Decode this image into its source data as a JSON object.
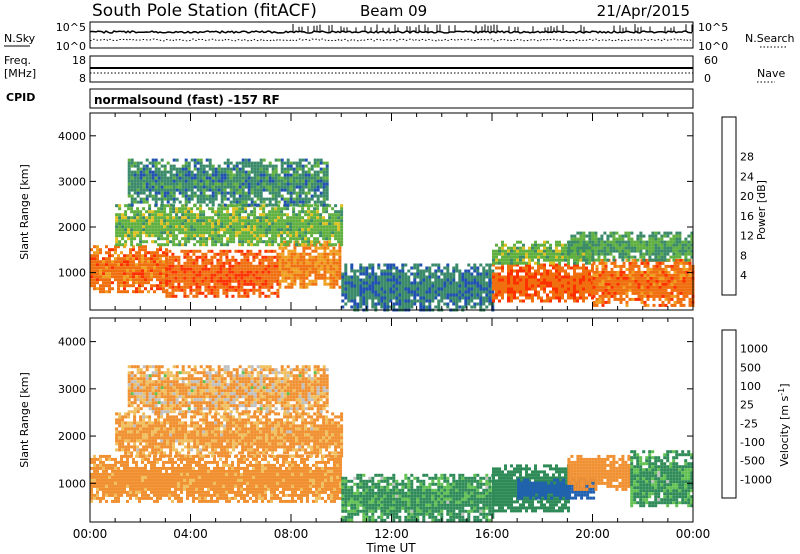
{
  "header": {
    "station_title": "South Pole Station (fitACF)",
    "beam": "Beam 09",
    "date": "21/Apr/2015"
  },
  "sky_panel": {
    "label_left": "N.Sky",
    "label_right": "N.Search",
    "left_ticks": [
      "10^5",
      "10^0"
    ],
    "right_ticks": [
      "10^5",
      "10^0"
    ]
  },
  "freq_panel": {
    "label_left_line1": "Freq.",
    "label_left_line2": "[MHz]",
    "label_right": "Nave",
    "left_ticks": [
      "18",
      "8"
    ],
    "right_ticks": [
      "60",
      "0"
    ]
  },
  "cpid": {
    "label": "CPID",
    "value": "normalsound (fast) -157 RF"
  },
  "x_axis": {
    "title": "Time UT",
    "ticks": [
      "00:00",
      "04:00",
      "08:00",
      "12:00",
      "16:00",
      "20:00",
      "00:00"
    ]
  },
  "colors": {
    "power_scale": [
      "#1030e0",
      "#2050b0",
      "#3a8a6a",
      "#60b040",
      "#e0c020",
      "#f0a020",
      "#f07010",
      "#ff3000",
      "#ff0000"
    ],
    "velocity_scale": [
      "#ff0000",
      "#ff5010",
      "#f09030",
      "#f0c060",
      "#c0c0c0",
      "#60c050",
      "#2e8b57",
      "#2060b0",
      "#1030e0"
    ]
  },
  "chart_data": [
    {
      "type": "heatmap",
      "name": "power",
      "ylabel": "Slant Range [km]",
      "xlabel": "",
      "x_range_hours": [
        0,
        24
      ],
      "ylim": [
        180,
        4500
      ],
      "yticks": [
        1000,
        2000,
        3000,
        4000
      ],
      "colorbar": {
        "label": "Power [dB]",
        "ticks": [
          4,
          8,
          12,
          16,
          20,
          24,
          28
        ],
        "range": [
          0,
          32
        ]
      },
      "regions": [
        {
          "t0": 0.0,
          "t1": 3.0,
          "r0": 600,
          "r1": 1600,
          "value": 26
        },
        {
          "t0": 3.0,
          "t1": 7.5,
          "r0": 500,
          "r1": 1500,
          "value": 27
        },
        {
          "t0": 7.5,
          "t1": 10.0,
          "r0": 700,
          "r1": 1700,
          "value": 24
        },
        {
          "t0": 1.0,
          "t1": 10.0,
          "r0": 1600,
          "r1": 2500,
          "value": 14
        },
        {
          "t0": 1.5,
          "t1": 9.5,
          "r0": 2500,
          "r1": 3500,
          "value": 10
        },
        {
          "t0": 10.0,
          "t1": 16.0,
          "r0": 200,
          "r1": 1200,
          "value": 9
        },
        {
          "t0": 16.0,
          "t1": 20.0,
          "r0": 400,
          "r1": 1200,
          "value": 27
        },
        {
          "t0": 16.0,
          "t1": 20.0,
          "r0": 1200,
          "r1": 1700,
          "value": 14
        },
        {
          "t0": 20.0,
          "t1": 24.0,
          "r0": 300,
          "r1": 1300,
          "value": 26
        },
        {
          "t0": 19.0,
          "t1": 24.0,
          "r0": 1300,
          "r1": 1900,
          "value": 12
        }
      ]
    },
    {
      "type": "heatmap",
      "name": "velocity",
      "ylabel": "Slant Range [km]",
      "xlabel": "Time UT",
      "x_range_hours": [
        0,
        24
      ],
      "ylim": [
        180,
        4500
      ],
      "yticks": [
        1000,
        2000,
        3000,
        4000
      ],
      "colorbar": {
        "label": "Velocity [m s^-1]",
        "ticks": [
          -1000,
          -500,
          -100,
          -25,
          25,
          100,
          500,
          1000
        ]
      },
      "regions": [
        {
          "t0": 0.0,
          "t1": 10.0,
          "r0": 600,
          "r1": 1600,
          "value": -200
        },
        {
          "t0": 1.0,
          "t1": 10.0,
          "r0": 1600,
          "r1": 2500,
          "value": -150
        },
        {
          "t0": 1.5,
          "t1": 9.5,
          "r0": 2500,
          "r1": 3500,
          "value": -100
        },
        {
          "t0": 10.0,
          "t1": 16.0,
          "r0": 200,
          "r1": 1200,
          "value": 150
        },
        {
          "t0": 16.0,
          "t1": 19.0,
          "r0": 400,
          "r1": 1400,
          "value": 300
        },
        {
          "t0": 17.0,
          "t1": 20.0,
          "r0": 700,
          "r1": 1100,
          "value": 700
        },
        {
          "t0": 19.0,
          "t1": 21.5,
          "r0": 900,
          "r1": 1600,
          "value": -300
        },
        {
          "t0": 21.5,
          "t1": 24.0,
          "r0": 500,
          "r1": 1700,
          "value": 150
        }
      ]
    }
  ]
}
